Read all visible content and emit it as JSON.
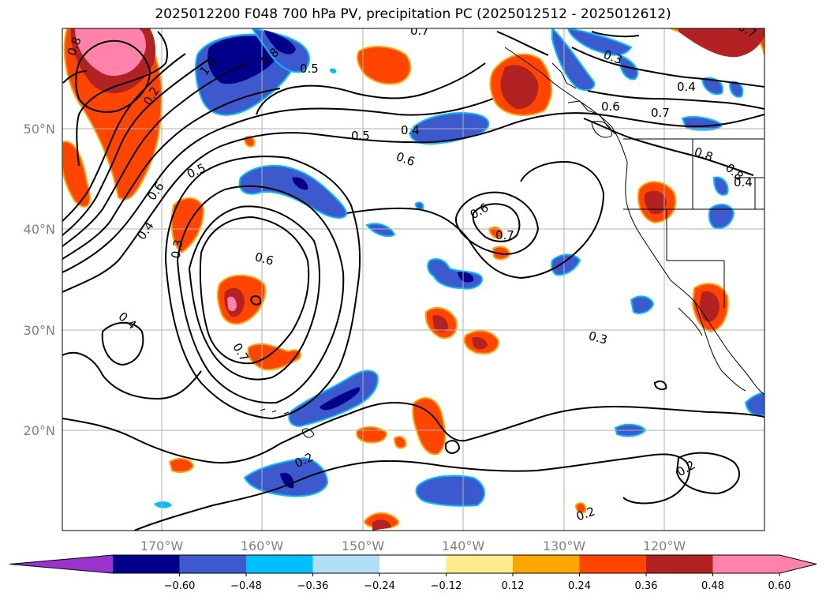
{
  "title": "2025012200 F048 700 hPa PV, precipitation PC (2025012512 - 2025012612)",
  "map": {
    "lon_ticks": [
      "170°W",
      "160°W",
      "150°W",
      "140°W",
      "130°W",
      "120°W"
    ],
    "lat_ticks": [
      "50°N",
      "40°N",
      "30°N",
      "20°N"
    ],
    "contour_labels": [
      "0.7",
      "0.8",
      "1.0",
      "0.8",
      "0.5",
      "0.2",
      "0.4",
      "0.6",
      "0.4",
      "0.3",
      "0.5",
      "0.4",
      "0.5",
      "0.6",
      "0.6",
      "0.7",
      "0.6",
      "0.7",
      "0.3",
      "0.2",
      "0.2",
      "0.2",
      "0.6",
      "0.7",
      "0.4",
      "0.8",
      "0.8",
      "0.4",
      "0.3",
      "0.7"
    ]
  },
  "colorbar": {
    "ticks": [
      "−0.60",
      "−0.48",
      "−0.36",
      "−0.24",
      "−0.12",
      "0.12",
      "0.24",
      "0.36",
      "0.48",
      "0.60"
    ],
    "colors": [
      "#9a32cd",
      "#00008b",
      "#3c5acd",
      "#00bfff",
      "#b0e0f8",
      "#ffffff",
      "#fdeb8c",
      "#ffa500",
      "#ff4500",
      "#b22222",
      "#ff82ab",
      "#ff82ab"
    ]
  }
}
